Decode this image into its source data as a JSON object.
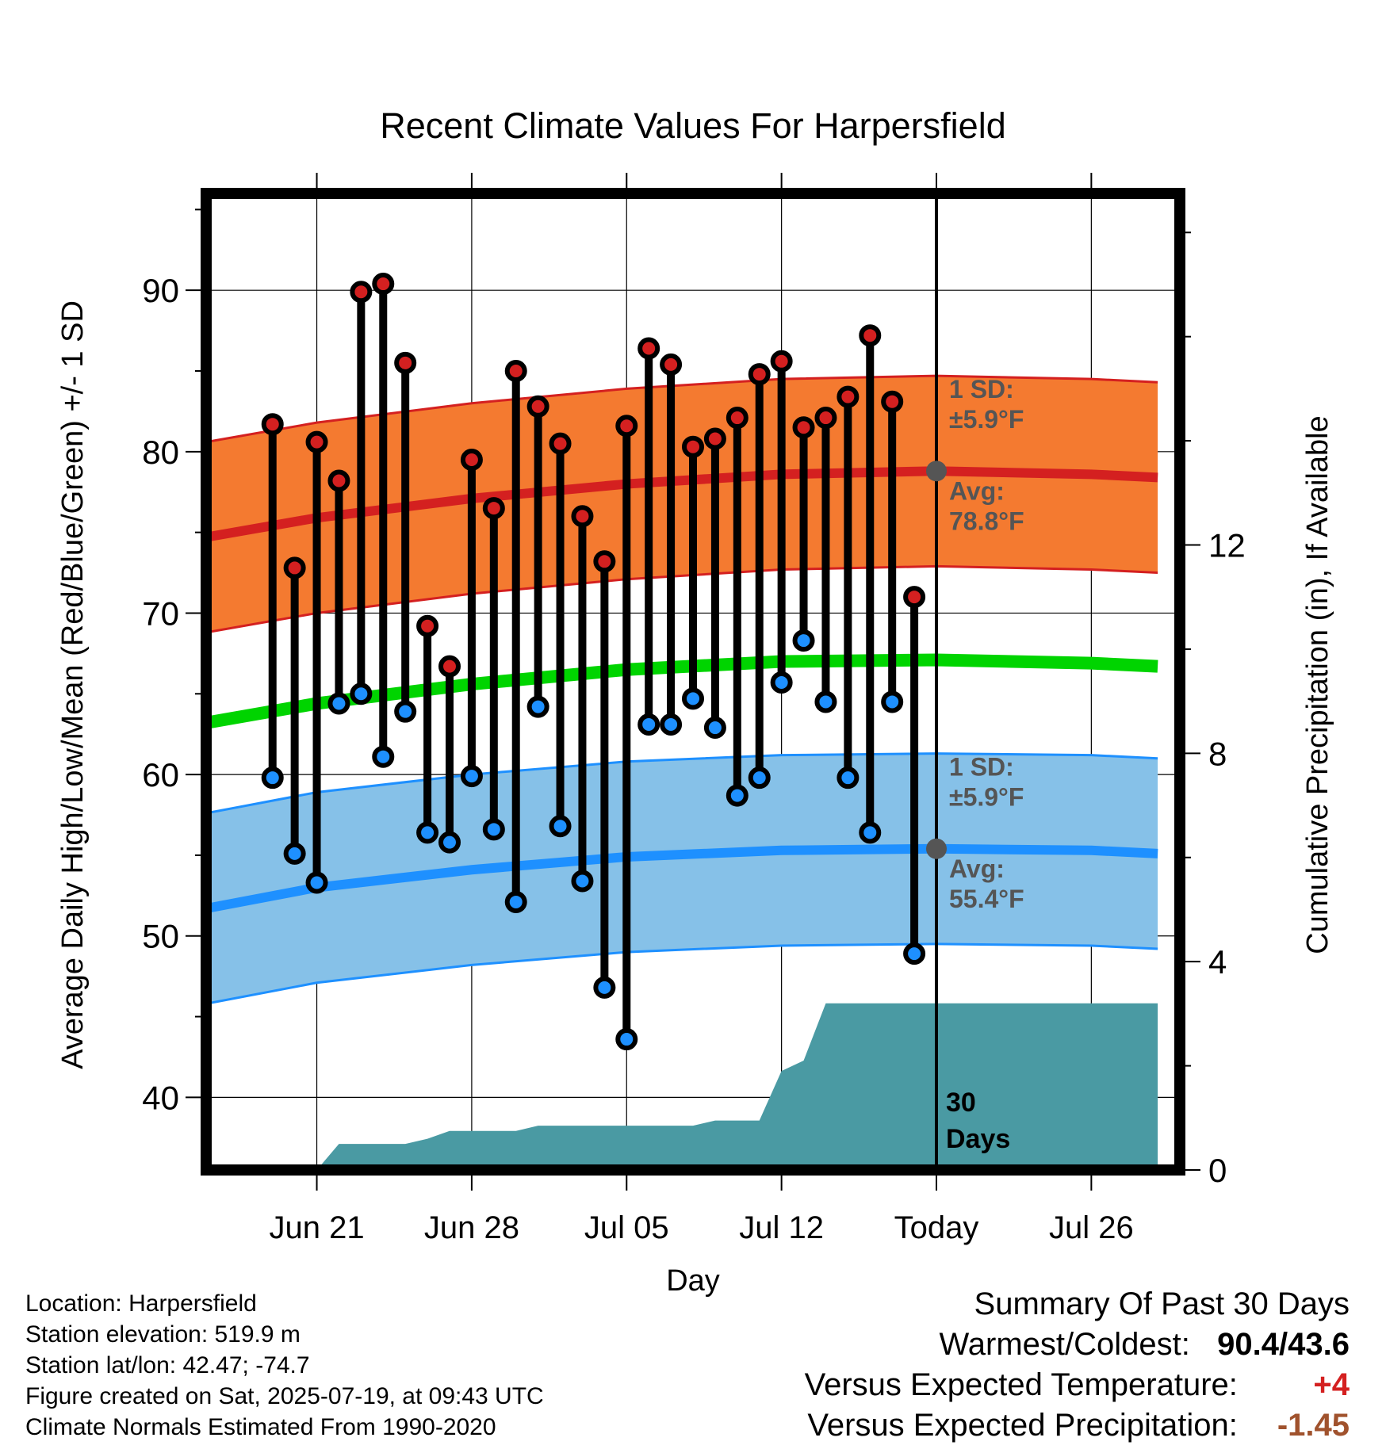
{
  "chart_data": {
    "type": "line",
    "title": "Recent Climate Values For Harpersfield",
    "xlabel": "Day",
    "ylabel": "Average Daily High/Low/Mean (Red/Blue/Green) +/- 1 SD",
    "y2label": "Cumulative Precipitation (in), If Available",
    "ylim": [
      35.5,
      96
    ],
    "y2lim": [
      0,
      18.75
    ],
    "yticks": [
      40,
      50,
      60,
      70,
      80,
      90
    ],
    "y2ticks": [
      0,
      4,
      8,
      12
    ],
    "xlim": [
      "2025-06-16",
      "2025-07-30"
    ],
    "xticks": [
      {
        "date": "2025-06-21",
        "label": "Jun 21"
      },
      {
        "date": "2025-06-28",
        "label": "Jun 28"
      },
      {
        "date": "2025-07-05",
        "label": "Jul 05"
      },
      {
        "date": "2025-07-12",
        "label": "Jul 12"
      },
      {
        "date": "2025-07-19",
        "label": "Today"
      },
      {
        "date": "2025-07-26",
        "label": "Jul 26"
      }
    ],
    "today": "2025-07-19",
    "today_marker_label": "30 Days",
    "grid": true,
    "observed": {
      "dates": [
        "2025-06-19",
        "2025-06-20",
        "2025-06-21",
        "2025-06-22",
        "2025-06-23",
        "2025-06-24",
        "2025-06-25",
        "2025-06-26",
        "2025-06-27",
        "2025-06-28",
        "2025-06-29",
        "2025-06-30",
        "2025-07-01",
        "2025-07-02",
        "2025-07-03",
        "2025-07-04",
        "2025-07-05",
        "2025-07-06",
        "2025-07-07",
        "2025-07-08",
        "2025-07-09",
        "2025-07-10",
        "2025-07-11",
        "2025-07-12",
        "2025-07-13",
        "2025-07-14",
        "2025-07-15",
        "2025-07-16",
        "2025-07-17",
        "2025-07-18"
      ],
      "high": [
        81.7,
        72.8,
        80.6,
        78.2,
        89.9,
        90.4,
        85.5,
        69.2,
        66.7,
        79.5,
        76.5,
        85.0,
        82.8,
        80.5,
        76.0,
        73.2,
        81.6,
        86.4,
        85.4,
        80.3,
        80.8,
        82.1,
        84.8,
        85.6,
        81.5,
        82.1,
        83.4,
        87.2,
        83.1,
        71.0
      ],
      "low": [
        59.8,
        55.1,
        53.3,
        64.4,
        65.0,
        61.1,
        63.9,
        56.4,
        55.8,
        59.9,
        56.6,
        52.1,
        64.2,
        56.8,
        53.4,
        46.8,
        43.6,
        63.1,
        63.1,
        64.7,
        62.9,
        58.7,
        59.8,
        65.7,
        68.3,
        64.5,
        59.8,
        56.4,
        64.5,
        48.9
      ]
    },
    "normals": {
      "dates": [
        "2025-06-16",
        "2025-06-21",
        "2025-06-28",
        "2025-07-05",
        "2025-07-12",
        "2025-07-19",
        "2025-07-26",
        "2025-07-29"
      ],
      "high_mean": [
        74.7,
        75.9,
        77.1,
        78.0,
        78.6,
        78.8,
        78.6,
        78.4
      ],
      "low_mean": [
        51.7,
        53.0,
        54.1,
        54.9,
        55.3,
        55.4,
        55.3,
        55.1
      ],
      "mean": [
        63.2,
        64.4,
        65.6,
        66.5,
        67.0,
        67.1,
        66.9,
        66.7
      ],
      "sd": 5.9
    },
    "precipitation": {
      "dates": [
        "2025-06-21",
        "2025-06-22",
        "2025-06-25",
        "2025-06-26",
        "2025-06-27",
        "2025-06-28",
        "2025-06-30",
        "2025-07-01",
        "2025-07-08",
        "2025-07-09",
        "2025-07-11",
        "2025-07-12",
        "2025-07-13",
        "2025-07-14",
        "2025-07-18",
        "2025-07-29"
      ],
      "cumulative": [
        0.0,
        0.5,
        0.5,
        0.6,
        0.75,
        0.75,
        0.75,
        0.85,
        0.85,
        0.95,
        0.95,
        1.9,
        2.1,
        3.2,
        3.2,
        3.2
      ]
    },
    "annotations": {
      "high_sd": {
        "line1": "1 SD:",
        "line2": "±5.9°F"
      },
      "high_avg": {
        "line1": "Avg:",
        "line2": "78.8°F"
      },
      "low_sd": {
        "line1": "1 SD:",
        "line2": "±5.9°F"
      },
      "low_avg": {
        "line1": "Avg:",
        "line2": "55.4°F"
      }
    }
  },
  "station": {
    "location": "Location: Harpersfield",
    "elevation": "Station elevation: 519.9 m",
    "latlon": "Station lat/lon: 42.47; -74.7",
    "created": "Figure created on Sat, 2025-07-19, at 09:43 UTC",
    "normals": "Climate Normals Estimated From 1990-2020"
  },
  "summary": {
    "title": "Summary Of Past 30 Days",
    "warm_cold_label": "Warmest/Coldest:",
    "warm_cold_value": "90.4/43.6",
    "temp_label": "Versus Expected Temperature:",
    "temp_value": "+4",
    "precip_label": "Versus Expected Precipitation:",
    "precip_value": "-1.45"
  },
  "colors": {
    "high_band": "#f47a30",
    "high_mean": "#d42020",
    "low_band": "#86c1e8",
    "low_mean": "#1e90ff",
    "low_band_edge": "#1e90ff",
    "mean_line": "#00d400",
    "precip": "#4a9aa3",
    "high_dot": "#d42020",
    "low_dot": "#1e90ff",
    "annotation": "#555555"
  }
}
